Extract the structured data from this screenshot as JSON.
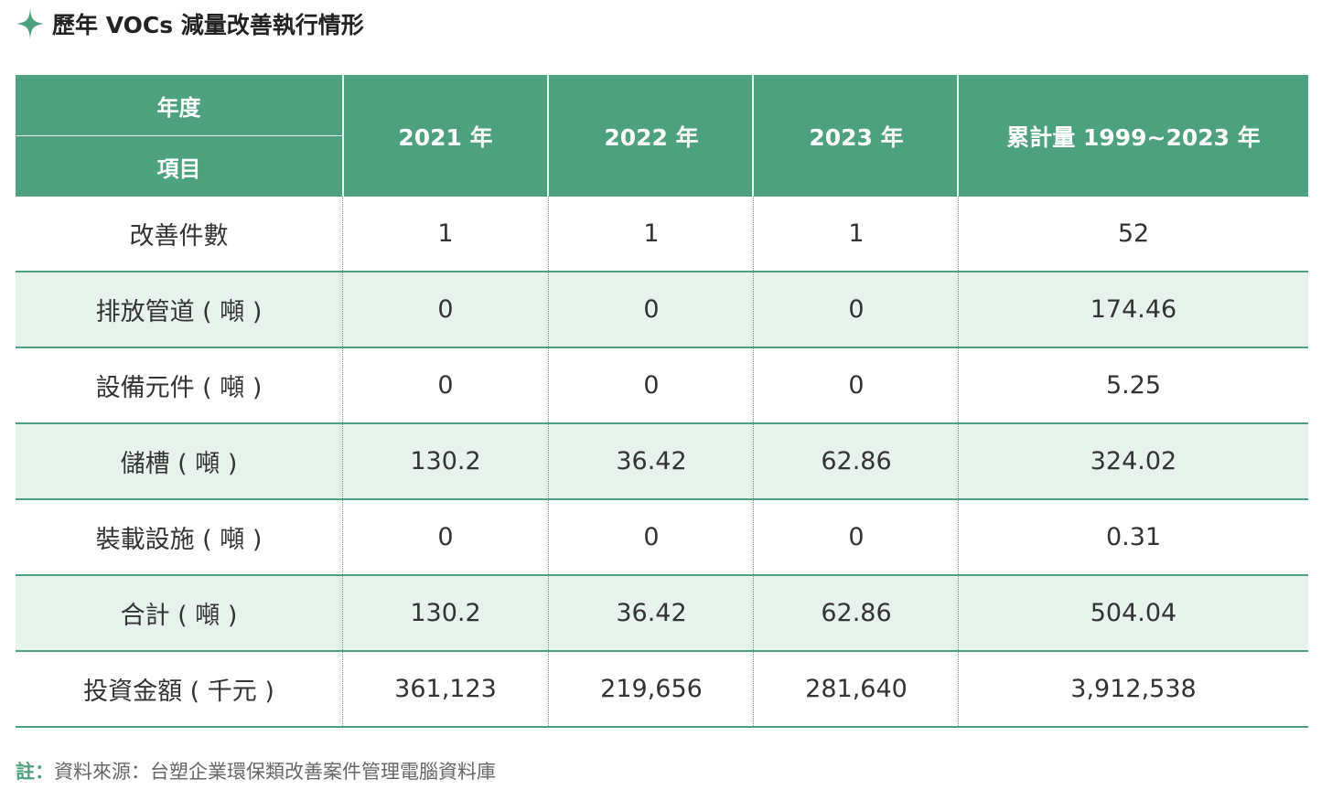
{
  "title": "歷年 VOCs 減量改善執行情形",
  "colors": {
    "accent": "#4ea17f",
    "row_alt": "#e8f2ed"
  },
  "header": {
    "corner_top": "年度",
    "corner_bottom": "項目",
    "years": [
      "2021 年",
      "2022 年",
      "2023 年",
      "累計量 1999~2023 年"
    ]
  },
  "rows": [
    {
      "label": "改善件數",
      "values": [
        "1",
        "1",
        "1",
        "52"
      ]
    },
    {
      "label": "排放管道 ( 噸 )",
      "values": [
        "0",
        "0",
        "0",
        "174.46"
      ]
    },
    {
      "label": "設備元件 ( 噸 )",
      "values": [
        "0",
        "0",
        "0",
        "5.25"
      ]
    },
    {
      "label": "儲槽 ( 噸 )",
      "values": [
        "130.2",
        "36.42",
        "62.86",
        "324.02"
      ]
    },
    {
      "label": "裝載設施 ( 噸 )",
      "values": [
        "0",
        "0",
        "0",
        "0.31"
      ]
    },
    {
      "label": "合計 ( 噸 )",
      "values": [
        "130.2",
        "36.42",
        "62.86",
        "504.04"
      ]
    },
    {
      "label": "投資金額 ( 千元 )",
      "values": [
        "361,123",
        "219,656",
        "281,640",
        "3,912,538"
      ]
    }
  ],
  "note": {
    "label": "註：",
    "text": "資料來源：台塑企業環保類改善案件管理電腦資料庫"
  }
}
